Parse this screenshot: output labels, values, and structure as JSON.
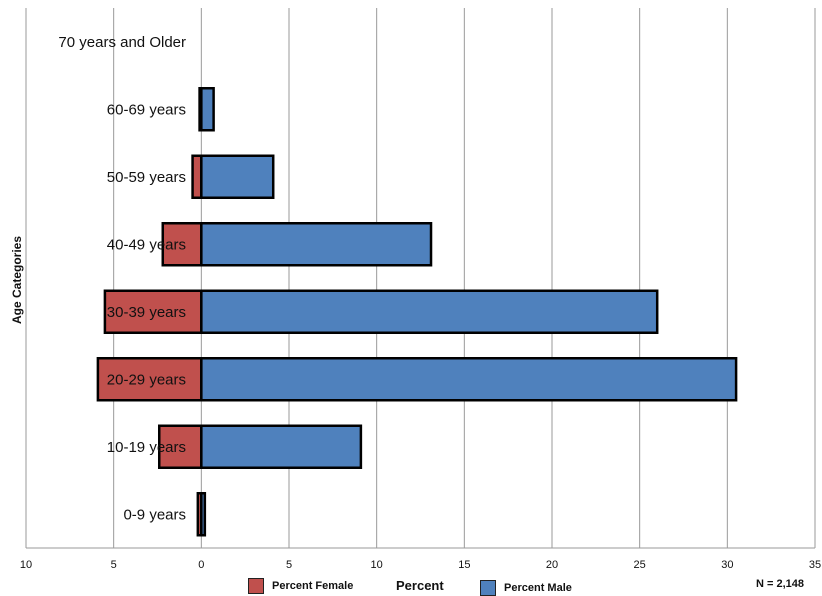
{
  "chart_data": {
    "type": "bar",
    "orientation": "horizontal",
    "layout": "population-pyramid",
    "categories": [
      "70 years and Older",
      "60-69 years",
      "50-59 years",
      "40-49 years",
      "30-39 years",
      "20-29 years",
      "10-19 years",
      "0-9 years"
    ],
    "series": [
      {
        "name": "Percent Female",
        "color": "#c0504d",
        "side": "left",
        "values": [
          0,
          0.1,
          0.5,
          2.2,
          5.5,
          5.9,
          2.4,
          0.2
        ]
      },
      {
        "name": "Percent Male",
        "color": "#4f81bd",
        "side": "right",
        "values": [
          0,
          0.7,
          4.1,
          13.1,
          26.0,
          30.5,
          9.1,
          0.2
        ]
      }
    ],
    "xlabel": "Percent",
    "ylabel": "Age Categories",
    "xlim": [
      -10,
      35
    ],
    "xticks": [
      -10,
      -5,
      0,
      5,
      10,
      15,
      20,
      25,
      30,
      35
    ],
    "xtick_labels": [
      "10",
      "5",
      "0",
      "5",
      "10",
      "15",
      "20",
      "25",
      "30",
      "35"
    ],
    "grid": true,
    "legend_position": "bottom",
    "annotation": "N = 2,148"
  }
}
